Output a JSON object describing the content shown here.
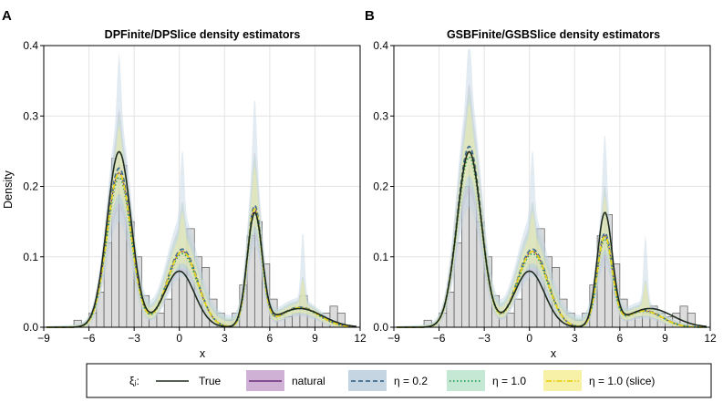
{
  "figure": {
    "ylabel": "Density",
    "xlabel": "x"
  },
  "legend": {
    "title": "ξⱼ:",
    "entries": [
      {
        "label": "True",
        "style": "solid",
        "line": "#1f2a1f",
        "fill": ""
      },
      {
        "label": "natural",
        "style": "solid",
        "line": "#6d2e7a",
        "fill": "#c9a8d0"
      },
      {
        "label": "η = 0.2",
        "style": "dashed",
        "line": "#3f6d8f",
        "fill": "#bfd2df"
      },
      {
        "label": "η = 1.0",
        "style": "dotted",
        "line": "#2e9c5a",
        "fill": "#bfe6cf"
      },
      {
        "label": "η = 1.0 (slice)",
        "style": "dashdot",
        "line": "#e8d21c",
        "fill": "#f6ef9e"
      }
    ]
  },
  "chart_data": [
    {
      "panel": "A",
      "type": "line",
      "title": "DPFinite/DPSlice density estimators",
      "xlim": [
        -9,
        12
      ],
      "ylim": [
        0,
        0.4
      ],
      "xticks": [
        -9,
        -6,
        -3,
        0,
        3,
        6,
        9,
        12
      ],
      "yticks": [
        0.0,
        0.1,
        0.2,
        0.3,
        0.4
      ],
      "grid": true,
      "histogram": {
        "bin_width": 0.5,
        "bin_start": -7,
        "heights": [
          0.01,
          0.005,
          0.02,
          0.05,
          0.12,
          0.24,
          0.23,
          0.15,
          0.1,
          0.045,
          0.02,
          0.02,
          0.04,
          0.09,
          0.1,
          0.14,
          0.1,
          0.085,
          0.04,
          0.02,
          0.01,
          0.02,
          0.06,
          0.13,
          0.15,
          0.09,
          0.04,
          0.02,
          0.015,
          0.02,
          0.045,
          0.02,
          0.015,
          0.02,
          0.03,
          0.02
        ]
      },
      "true_components": [
        [
          0.5,
          -4,
          0.8
        ],
        [
          0.2,
          0,
          1.0
        ],
        [
          0.2,
          5,
          0.5
        ],
        [
          0.1,
          8,
          1.5
        ]
      ],
      "estimate_components": [
        [
          0.44,
          -4,
          0.8
        ],
        [
          0.27,
          0.2,
          1.0
        ],
        [
          0.2,
          5,
          0.48
        ],
        [
          0.09,
          8,
          1.3
        ]
      ],
      "spike_xs": [
        -4,
        0.2,
        5,
        8.2
      ]
    },
    {
      "panel": "B",
      "type": "line",
      "title": "GSBFinite/GSBSlice density estimators",
      "xlim": [
        -9,
        12
      ],
      "ylim": [
        0,
        0.4
      ],
      "xticks": [
        -9,
        -6,
        -3,
        0,
        3,
        6,
        9,
        12
      ],
      "yticks": [
        0.0,
        0.1,
        0.2,
        0.3,
        0.4
      ],
      "grid": true,
      "histogram": {
        "bin_width": 0.5,
        "bin_start": -7,
        "heights": [
          0.01,
          0.005,
          0.02,
          0.05,
          0.12,
          0.2,
          0.23,
          0.15,
          0.1,
          0.045,
          0.02,
          0.02,
          0.04,
          0.09,
          0.1,
          0.14,
          0.1,
          0.085,
          0.04,
          0.02,
          0.01,
          0.02,
          0.06,
          0.13,
          0.16,
          0.09,
          0.04,
          0.02,
          0.015,
          0.02,
          0.03,
          0.02,
          0.015,
          0.02,
          0.03,
          0.02
        ]
      },
      "true_components": [
        [
          0.5,
          -4,
          0.8
        ],
        [
          0.2,
          0,
          1.0
        ],
        [
          0.2,
          5,
          0.5
        ],
        [
          0.1,
          8,
          1.5
        ]
      ],
      "estimate_components": [
        [
          0.5,
          -4,
          0.8
        ],
        [
          0.27,
          0.2,
          1.0
        ],
        [
          0.16,
          5,
          0.5
        ],
        [
          0.07,
          7.6,
          1.2
        ]
      ],
      "spike_xs": [
        -4,
        0.2,
        5,
        7.7
      ]
    }
  ]
}
